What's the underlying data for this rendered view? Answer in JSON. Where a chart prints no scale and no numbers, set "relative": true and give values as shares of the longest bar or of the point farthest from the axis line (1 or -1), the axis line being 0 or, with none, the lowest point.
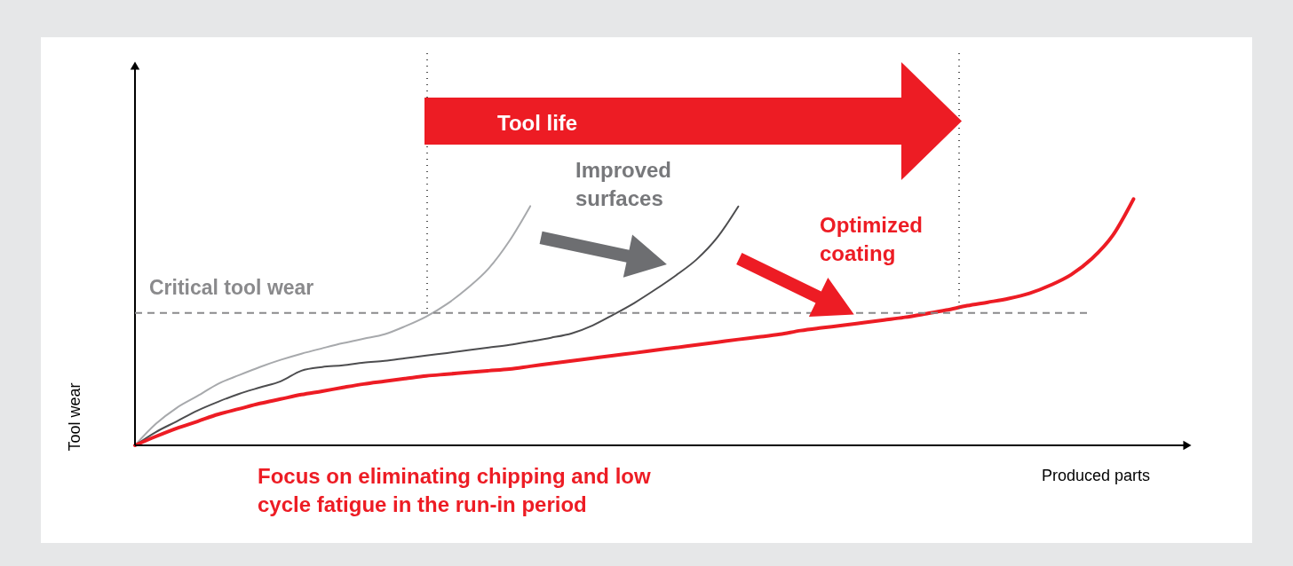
{
  "chart_data": {
    "type": "line",
    "relative": true,
    "xlabel": "Produced parts",
    "ylabel": "Tool wear",
    "categories": [
      null,
      null,
      null,
      null,
      null,
      null,
      null,
      null,
      null,
      null,
      null,
      null,
      null,
      null,
      null,
      null,
      null,
      null,
      null,
      null,
      null,
      null,
      null,
      null,
      null,
      null,
      null,
      null,
      null,
      null,
      null,
      null,
      null,
      null,
      null,
      null,
      null,
      null,
      null,
      null,
      null,
      null,
      null,
      null,
      null,
      null,
      null,
      null,
      null,
      null,
      null
    ],
    "series": [
      {
        "color": "#a7a9ac",
        "values": [
          0,
          0.087,
          0.152,
          0.2,
          0.25,
          0.285,
          0.318,
          0.347,
          0.372,
          0.394,
          0.415,
          0.433,
          0.451,
          0.484,
          0.523,
          0.574,
          0.639,
          0.718,
          0.83,
          0.971,
          null,
          null,
          null,
          null,
          null,
          null,
          null,
          null,
          null,
          null,
          null,
          null,
          null,
          null,
          null,
          null,
          null,
          null,
          null,
          null,
          null,
          null,
          null,
          null,
          null,
          null,
          null,
          null,
          null,
          null,
          null
        ]
      },
      {
        "color": "#4d4d4f",
        "values": [
          0,
          0.054,
          0.097,
          0.141,
          0.177,
          0.209,
          0.235,
          0.26,
          0.303,
          0.318,
          0.325,
          0.336,
          0.343,
          0.354,
          0.365,
          0.375,
          0.386,
          0.397,
          0.408,
          0.422,
          0.437,
          0.455,
          0.487,
          0.531,
          0.578,
          0.632,
          0.69,
          0.755,
          0.845,
          0.97,
          null,
          null,
          null,
          null,
          null,
          null,
          null,
          null,
          null,
          null,
          null,
          null,
          null,
          null,
          null,
          null,
          null,
          null,
          null,
          null,
          null
        ]
      },
      {
        "color": "#ed1c24",
        "values": [
          0,
          0.036,
          0.069,
          0.097,
          0.126,
          0.148,
          0.17,
          0.188,
          0.206,
          0.22,
          0.235,
          0.249,
          0.26,
          0.271,
          0.282,
          0.289,
          0.296,
          0.303,
          0.31,
          0.321,
          0.332,
          0.343,
          0.354,
          0.365,
          0.375,
          0.386,
          0.397,
          0.408,
          0.419,
          0.43,
          0.44,
          0.451,
          0.466,
          0.477,
          0.487,
          0.498,
          0.509,
          0.52,
          0.534,
          0.549,
          0.567,
          0.581,
          0.596,
          0.617,
          0.65,
          0.693,
          0.758,
          0.852,
          1,
          null,
          null
        ]
      }
    ],
    "ref_lines": [
      {
        "axis": "y",
        "value": 0.538,
        "label": "Critical tool wear",
        "color": "#8a8a8c",
        "line_style": "dashed"
      }
    ],
    "annotations": [
      "Tool life",
      "Improved surfaces",
      "Optimized coating",
      "Focus on eliminating chipping and low\ncycle fatigue in the run-in period"
    ],
    "legend": false,
    "marker": "none",
    "line_style": "solid"
  }
}
